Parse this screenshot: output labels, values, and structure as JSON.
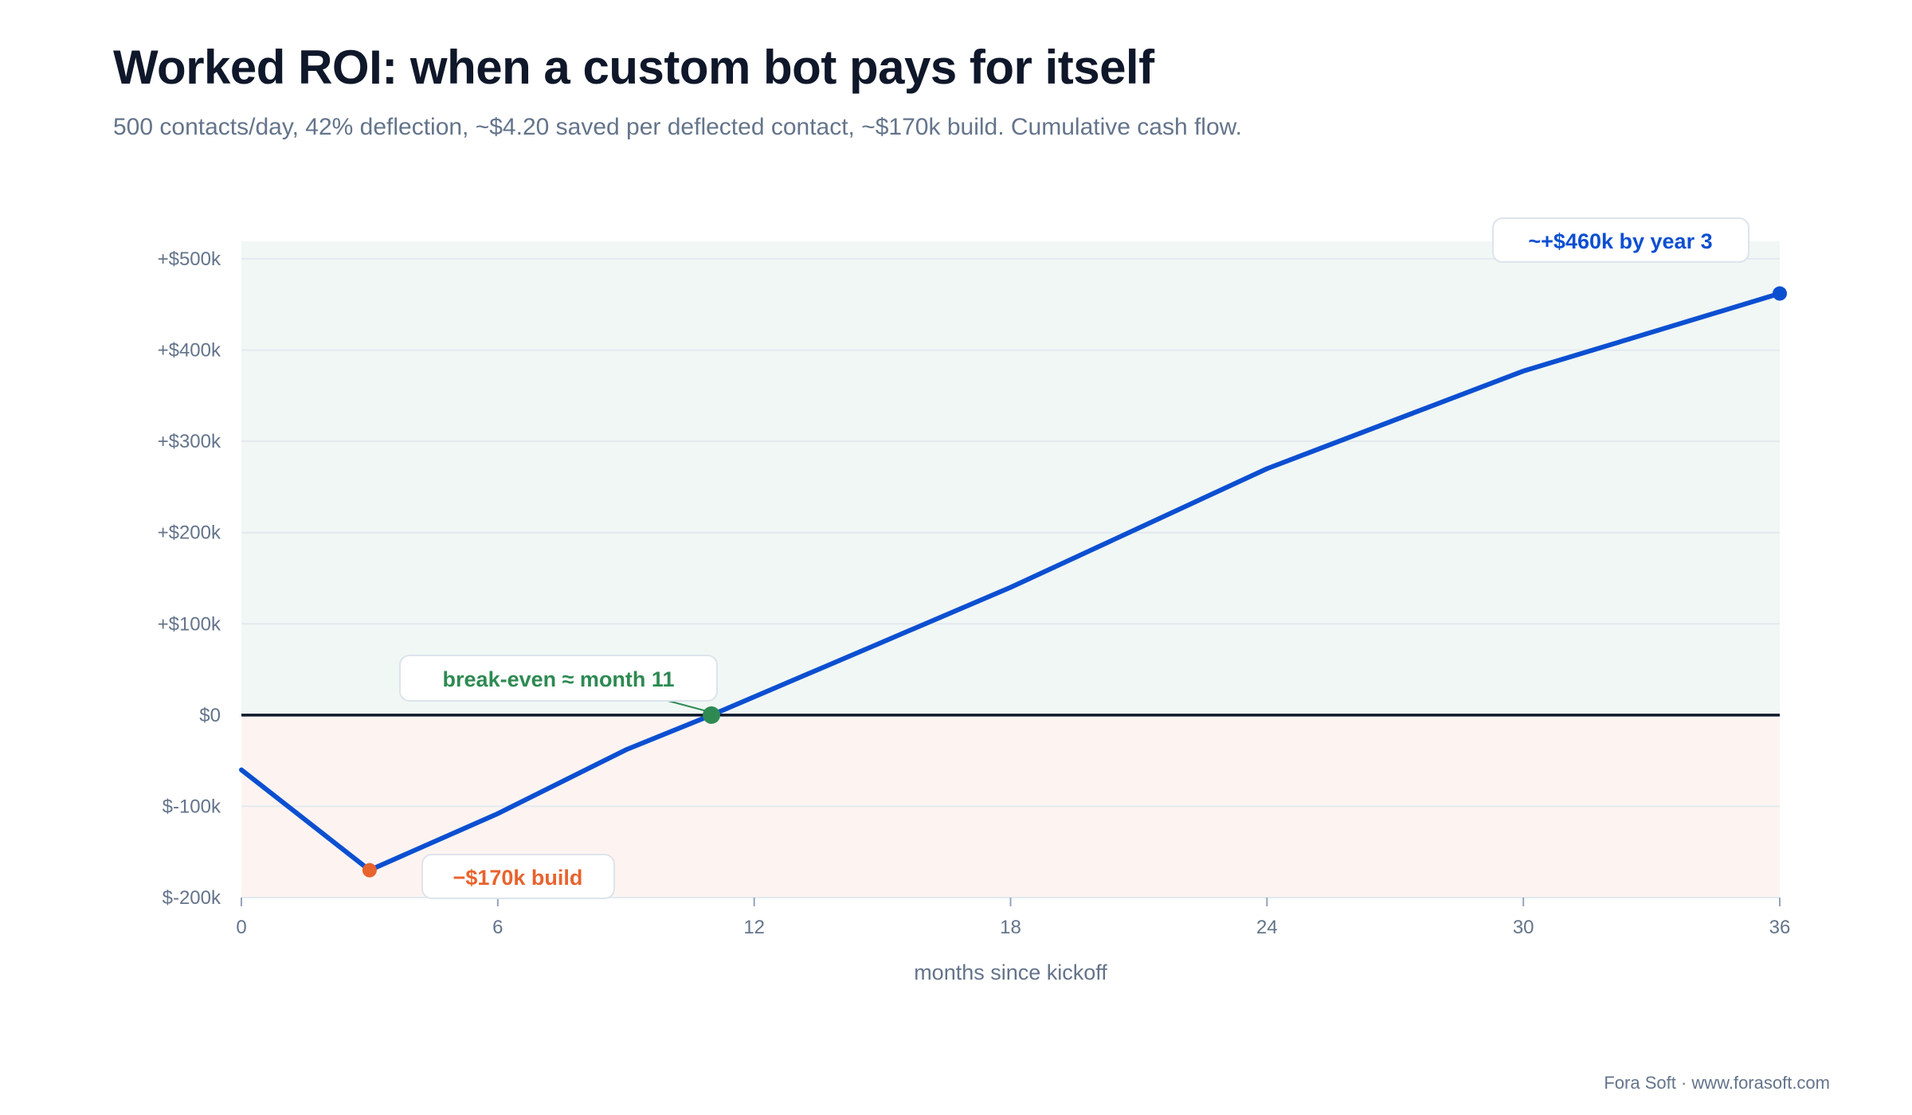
{
  "header": {
    "title": "Worked ROI: when a custom bot pays for itself",
    "subtitle": "500 contacts/day, 42% deflection, ~$4.20 saved per deflected contact, ~$170k build. Cumulative cash flow."
  },
  "footer": {
    "credit": "Fora Soft · www.forasoft.com"
  },
  "colors": {
    "line": "#0b4fd1",
    "positive_zone": "#f1f7f4",
    "negative_zone": "#fdf4f1",
    "break_even": "#2e8a52",
    "build_cost": "#e8632e",
    "zero_line": "#0f172a",
    "grid": "#e3e9ef",
    "axis_text": "#64748b"
  },
  "chart_data": {
    "type": "line",
    "title": "Worked ROI: when a custom bot pays for itself",
    "xlabel": "months since kickoff",
    "ylabel": "",
    "xlim": [
      0,
      36
    ],
    "ylim": [
      -200,
      520
    ],
    "grid": true,
    "x_ticks": [
      0,
      6,
      12,
      18,
      24,
      30,
      36
    ],
    "x_tick_labels": [
      "0",
      "6",
      "12",
      "18",
      "24",
      "30",
      "36"
    ],
    "y_ticks": [
      -200,
      -100,
      0,
      100,
      200,
      300,
      400,
      500
    ],
    "y_tick_labels": [
      "$-200k",
      "$-100k",
      "$0",
      "+$100k",
      "+$200k",
      "+$300k",
      "+$400k",
      "+$500k"
    ],
    "y_unit": "$k",
    "series": [
      {
        "x": [
          0,
          3,
          6,
          9,
          11,
          15,
          18,
          21,
          24,
          30,
          36
        ],
        "values": [
          -60,
          -170,
          -108,
          -38,
          0,
          80,
          140,
          205,
          270,
          377,
          462
        ]
      }
    ],
    "annotations": [
      {
        "label": "break-even ≈ month 11",
        "x": 11,
        "y": 0,
        "color": "#2e8a52"
      },
      {
        "label": "−$170k build",
        "x": 3,
        "y": -170,
        "color": "#e8632e"
      },
      {
        "label": "~+$460k by year 3",
        "x": 36,
        "y": 462,
        "color": "#0b4fd1"
      }
    ]
  }
}
